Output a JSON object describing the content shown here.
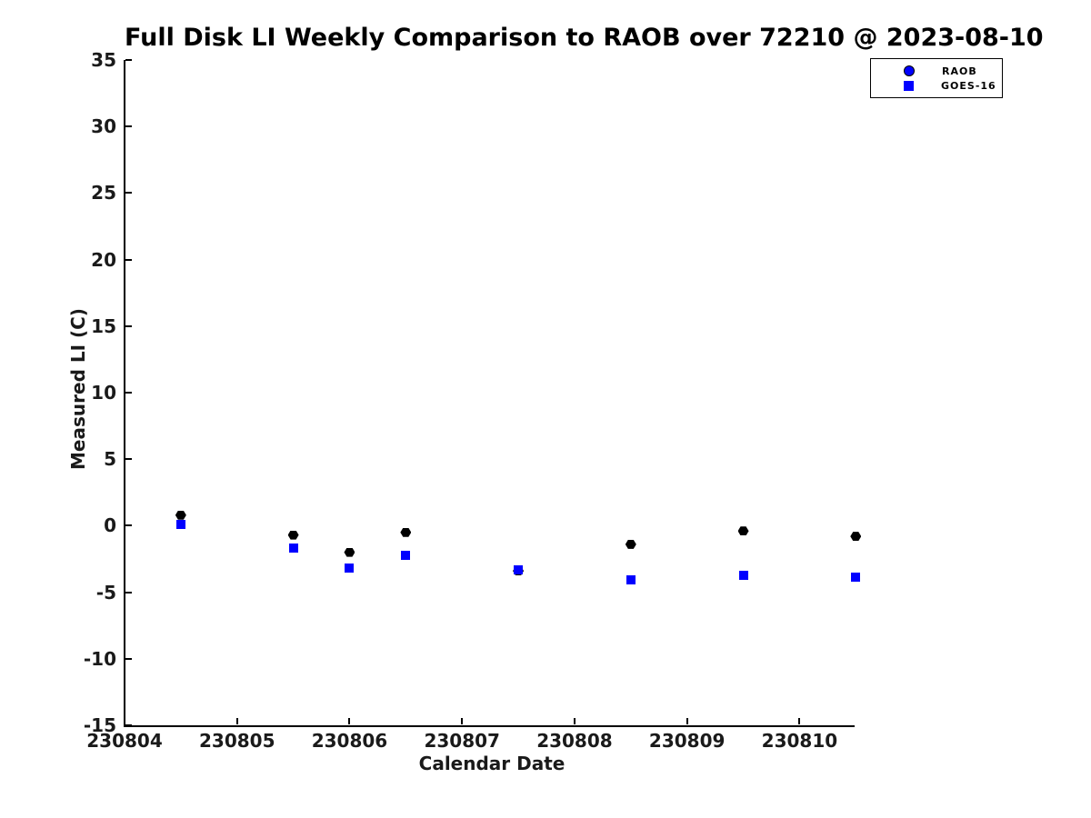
{
  "chart_data": {
    "type": "scatter",
    "title": "Full Disk LI Weekly Comparison to RAOB over 72210 @ 2023-08-10",
    "xlabel": "Calendar Date",
    "ylabel": "Measured LI (C)",
    "xlim": [
      230804,
      230810.53
    ],
    "ylim": [
      -15,
      35
    ],
    "grid": false,
    "x_ticks": [
      {
        "value": 230804,
        "label": "230804"
      },
      {
        "value": 230805,
        "label": "230805"
      },
      {
        "value": 230806,
        "label": "230806"
      },
      {
        "value": 230807,
        "label": "230807"
      },
      {
        "value": 230808,
        "label": "230808"
      },
      {
        "value": 230809,
        "label": "230809"
      },
      {
        "value": 230810,
        "label": "230810"
      }
    ],
    "y_ticks": [
      {
        "value": -15,
        "label": "-15"
      },
      {
        "value": -10,
        "label": "-10"
      },
      {
        "value": -5,
        "label": "-5"
      },
      {
        "value": 0,
        "label": "0"
      },
      {
        "value": 5,
        "label": "5"
      },
      {
        "value": 10,
        "label": "10"
      },
      {
        "value": 15,
        "label": "15"
      },
      {
        "value": 20,
        "label": "20"
      },
      {
        "value": 25,
        "label": "25"
      },
      {
        "value": 30,
        "label": "30"
      },
      {
        "value": 35,
        "label": "35"
      }
    ],
    "x": [
      230804.5,
      230805.5,
      230806.0,
      230806.5,
      230807.5,
      230808.5,
      230809.5,
      230810.5
    ],
    "series": [
      {
        "name": "RAOB",
        "marker": "hexagon",
        "color": "#000000",
        "legend_color": "#0000ff",
        "values": [
          0.8,
          -0.7,
          -2.0,
          -0.5,
          -3.4,
          -1.4,
          -0.4,
          -0.8
        ]
      },
      {
        "name": "GOES-16",
        "marker": "square",
        "color": "#0000ff",
        "legend_color": "#0000ff",
        "values": [
          0.1,
          -1.7,
          -3.2,
          -2.2,
          -3.3,
          -4.1,
          -3.7,
          -3.9
        ]
      }
    ],
    "legend": {
      "position": "top-right",
      "entries": [
        "RAOB",
        "GOES-16"
      ]
    }
  }
}
